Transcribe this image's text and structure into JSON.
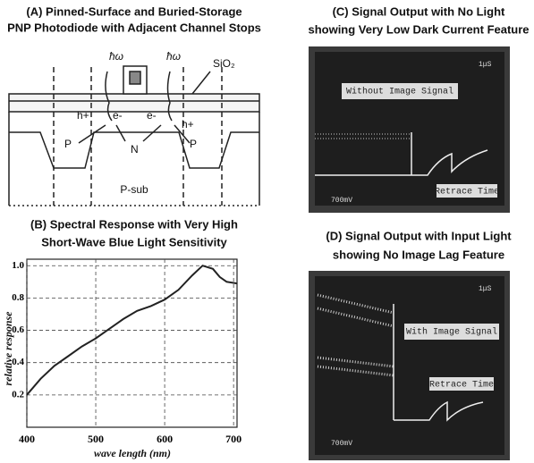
{
  "panel_a": {
    "title": [
      "(A) Pinned-Surface and Buried-Storage",
      "PNP Photodiode with Adjacent Channel Stops"
    ],
    "photon_left": "ħω",
    "photon_right": "ħω",
    "oxide": "SiO₂",
    "hole_left": "h+",
    "electron_left": "e-",
    "electron_right": "e-",
    "hole_right": "h+",
    "p_left": "P",
    "n_region": "N",
    "p_right": "P",
    "substrate": "P-sub"
  },
  "chart_data": {
    "type": "line",
    "title": [
      "(B) Spectral Response with Very High",
      "Short-Wave Blue Light Sensitivity"
    ],
    "x": [
      400,
      420,
      440,
      460,
      480,
      500,
      520,
      540,
      560,
      580,
      600,
      620,
      640,
      655,
      670,
      680,
      690,
      705
    ],
    "values": [
      0.2,
      0.3,
      0.38,
      0.44,
      0.5,
      0.55,
      0.61,
      0.67,
      0.72,
      0.75,
      0.79,
      0.85,
      0.94,
      1.0,
      0.98,
      0.93,
      0.9,
      0.89
    ],
    "color": "#222",
    "xlim": [
      400,
      705
    ],
    "ylim": [
      0,
      1.04
    ],
    "xticks": [
      400,
      500,
      600,
      700
    ],
    "yticks": [
      0.2,
      0.4,
      0.6,
      0.8,
      {
        "value": 1,
        "label": "1.0"
      }
    ],
    "xlabel": "wave length (nm)",
    "ylabel": "relative response",
    "grid": true
  },
  "panel_c": {
    "title": [
      "(C) Signal Output with No Light",
      "showing Very Low Dark Current Feature"
    ],
    "time_scale": "1μS",
    "signal_label": "Without Image Signal",
    "retrace_label": "Retrace Time",
    "volt_scale": "700mV"
  },
  "panel_d": {
    "title": [
      "(D) Signal Output with Input Light",
      "showing No Image Lag Feature"
    ],
    "time_scale": "1μS",
    "signal_label": "With Image Signal",
    "retrace_label": "Retrace Time",
    "volt_scale": "700mV"
  }
}
